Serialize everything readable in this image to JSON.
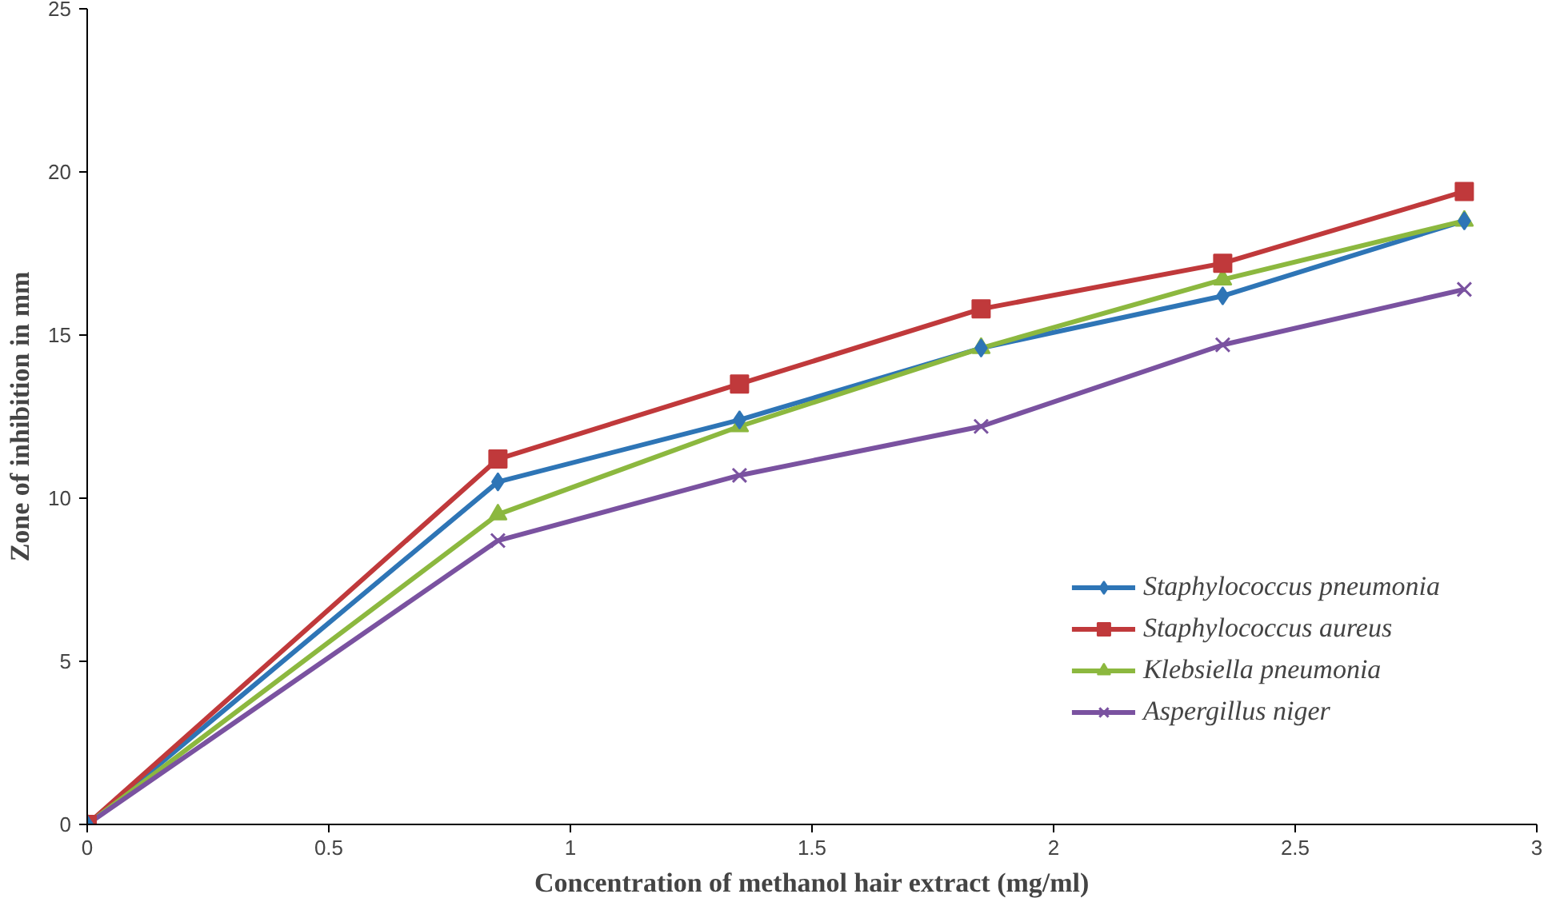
{
  "chart_data": {
    "type": "line",
    "xlabel": "Concentration of methanol hair extract (mg/ml)",
    "ylabel": "Zone of inhibition in mm",
    "x": [
      0,
      0.85,
      1.35,
      1.85,
      2.35,
      2.85
    ],
    "xlim": [
      0,
      3
    ],
    "xticks": [
      0,
      0.5,
      1,
      1.5,
      2,
      2.5,
      3
    ],
    "ylim": [
      0,
      25
    ],
    "yticks": [
      0,
      5,
      10,
      15,
      20,
      25
    ],
    "grid": false,
    "legend": "right",
    "series": [
      {
        "name": "Staphylococcus pneumonia",
        "color": "#2e75b6",
        "marker": "diamond",
        "values": [
          0,
          10.5,
          12.4,
          14.6,
          16.2,
          18.5
        ]
      },
      {
        "name": "Staphylococcus aureus",
        "color": "#c0393b",
        "marker": "square",
        "values": [
          0,
          11.2,
          13.5,
          15.8,
          17.2,
          19.4
        ]
      },
      {
        "name": "Klebsiella pneumonia",
        "color": "#8cb83f",
        "marker": "triangle",
        "values": [
          0,
          9.5,
          12.2,
          14.6,
          16.7,
          18.5
        ]
      },
      {
        "name": "Aspergillus niger",
        "color": "#7a52a0",
        "marker": "x",
        "values": [
          0,
          8.7,
          10.7,
          12.2,
          14.7,
          16.4
        ]
      }
    ]
  }
}
